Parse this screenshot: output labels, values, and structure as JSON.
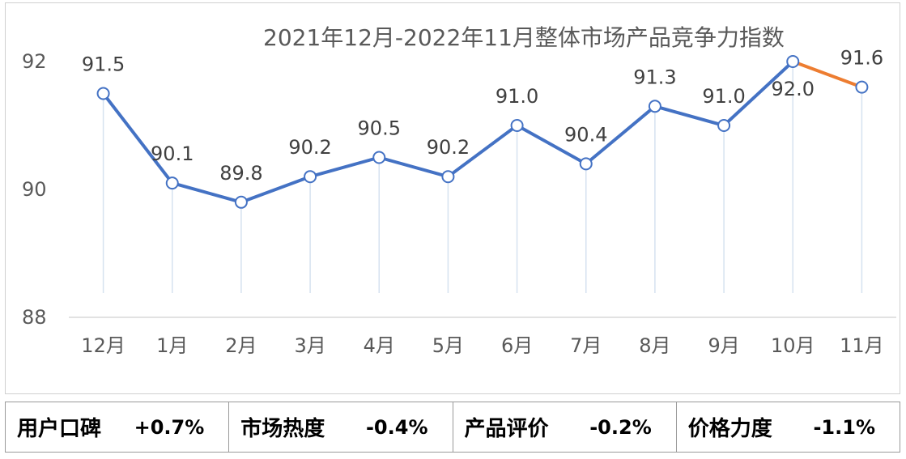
{
  "chart_data": {
    "type": "line",
    "title": "2021年12月-2022年11月整体市场产品竞争力指数",
    "categories": [
      "12月",
      "1月",
      "2月",
      "3月",
      "4月",
      "5月",
      "6月",
      "7月",
      "8月",
      "9月",
      "10月",
      "11月"
    ],
    "series": [
      {
        "values": [
          91.5,
          90.1,
          89.8,
          90.2,
          90.5,
          90.2,
          91.0,
          90.4,
          91.3,
          91.0,
          92.0,
          91.6
        ]
      }
    ],
    "data_labels": [
      "91.5",
      "90.1",
      "89.8",
      "90.2",
      "90.5",
      "90.2",
      "91.0",
      "90.4",
      "91.3",
      "91.0",
      "92.0",
      "91.6"
    ],
    "y_ticks": [
      "88",
      "90",
      "92"
    ],
    "ylim": [
      88,
      92
    ],
    "grid": false,
    "colors": {
      "line": "#4472C4",
      "last_segment": "#ED7D31",
      "drop_lines": "#d6e2f0",
      "axis": "#d9d9d9"
    }
  },
  "metrics": [
    {
      "label": "用户口碑",
      "value": "+0.7%"
    },
    {
      "label": "市场热度",
      "value": "-0.4%"
    },
    {
      "label": "产品评价",
      "value": "-0.2%"
    },
    {
      "label": "价格力度",
      "value": "-1.1%"
    }
  ]
}
